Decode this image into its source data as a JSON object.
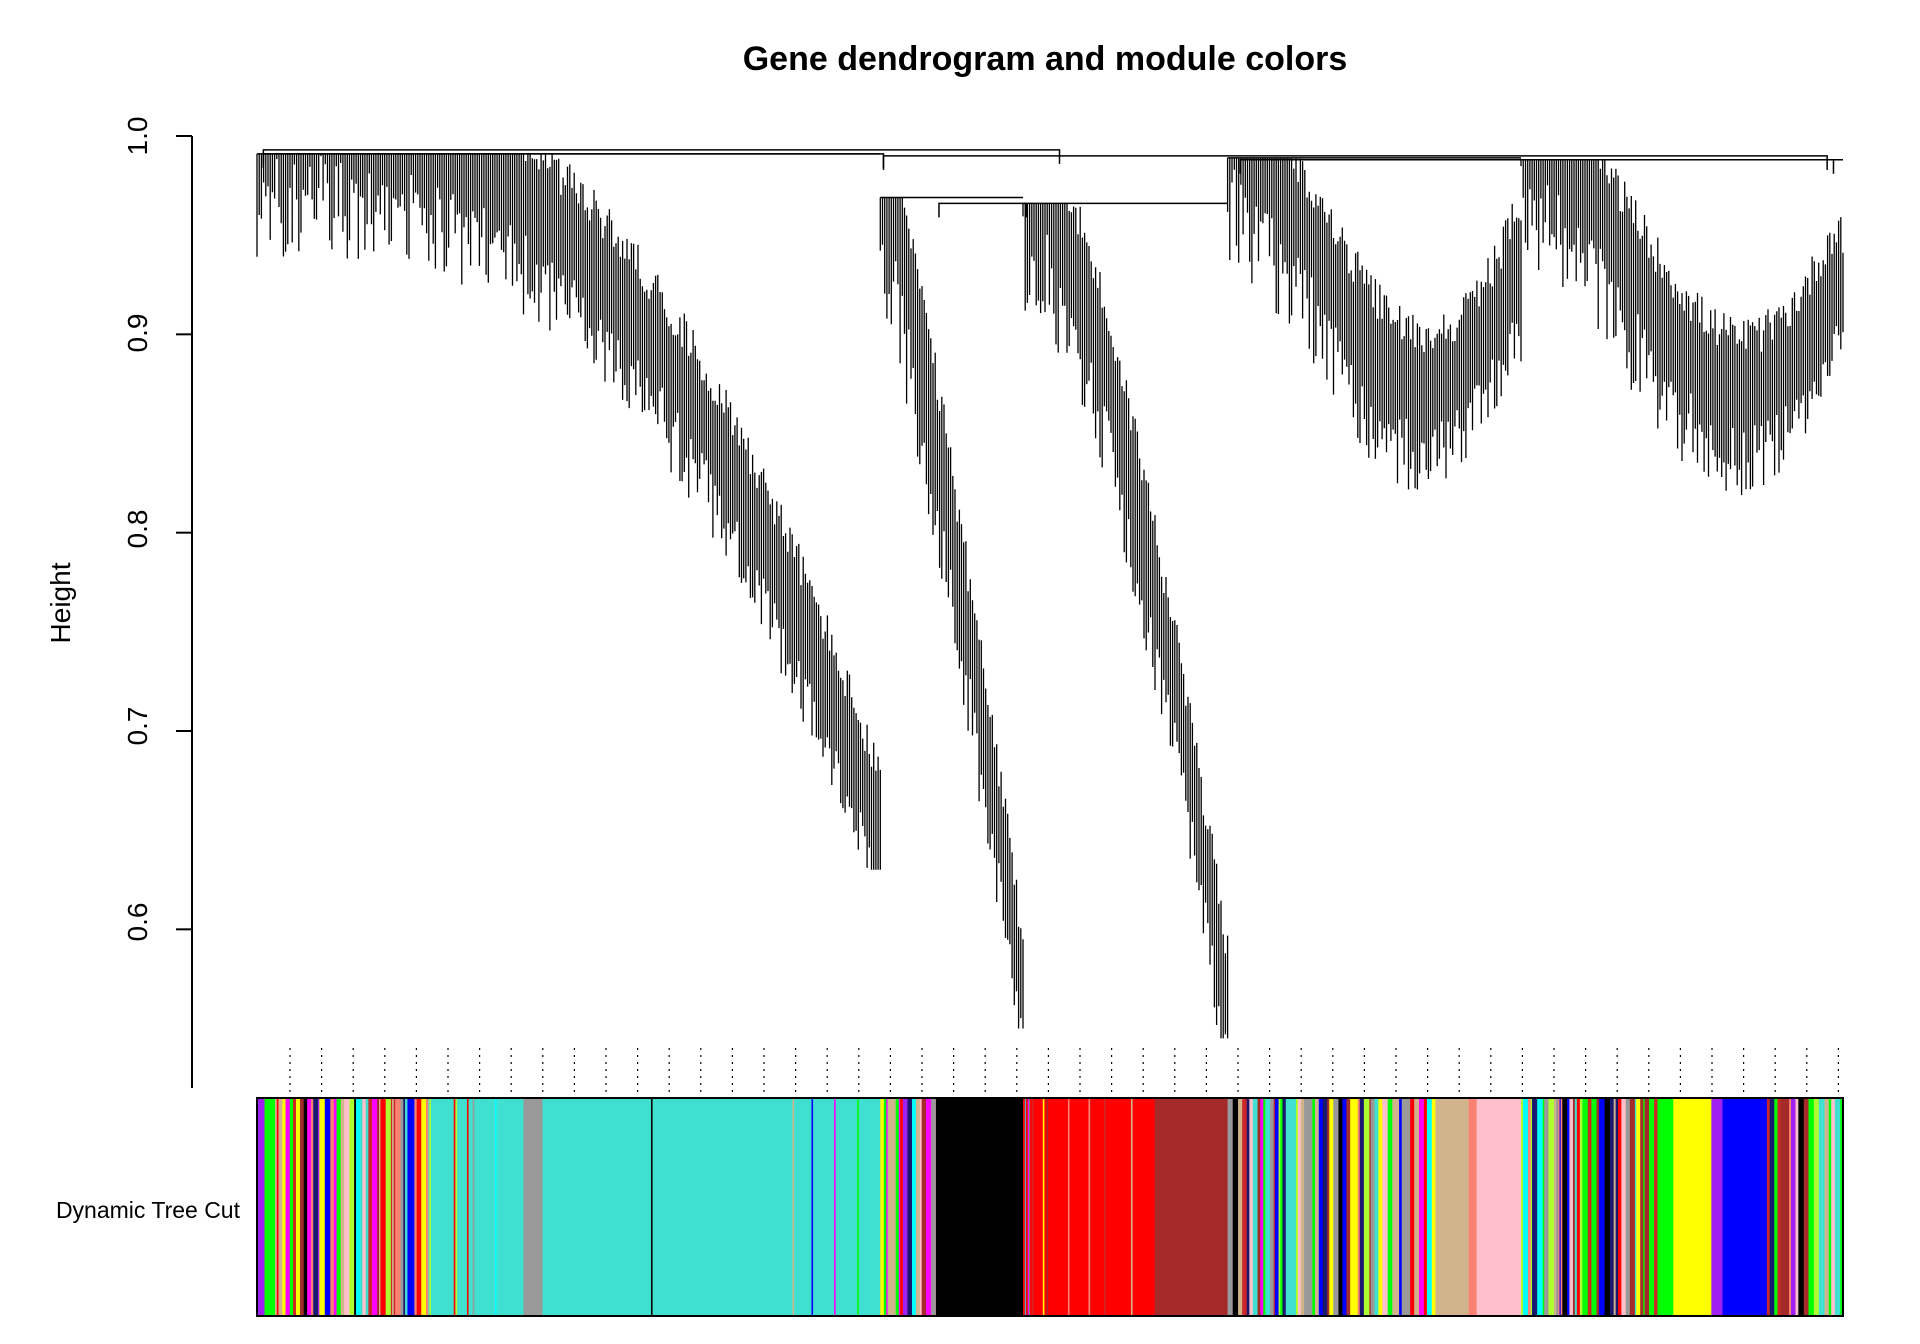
{
  "chart_data": {
    "type": "dendrogram",
    "title": "Gene dendrogram and module colors",
    "ylabel": "Height",
    "yticks": [
      "0.6",
      "0.7",
      "0.8",
      "0.9",
      "1.0"
    ],
    "ytick_values": [
      0.6,
      0.7,
      0.8,
      0.9,
      1.0
    ],
    "ylim": [
      0.52,
      1.0
    ],
    "color_row_label": "Dynamic Tree Cut",
    "top_merge_heights": [
      0.993,
      0.991,
      0.99,
      0.988,
      0.987
    ],
    "main_branches": [
      {
        "name": "turquoise branch",
        "top": 0.991,
        "min": 0.63
      },
      {
        "name": "black branch",
        "top": 0.969,
        "min": 0.55
      },
      {
        "name": "red/brown branch",
        "top": 0.966,
        "min": 0.545
      },
      {
        "name": "mixed branch",
        "top": 0.989,
        "min": 0.775
      },
      {
        "name": "blue/yellow branch",
        "top": 0.988,
        "min": 0.765
      }
    ],
    "modules": [
      {
        "color": "mixed",
        "start": 0.0,
        "end": 0.108
      },
      {
        "color": "turquoise",
        "start": 0.108,
        "end": 0.168
      },
      {
        "color": "grey",
        "start": 0.168,
        "end": 0.18
      },
      {
        "color": "turquoise",
        "start": 0.18,
        "end": 0.393
      },
      {
        "color": "mixed",
        "start": 0.393,
        "end": 0.428
      },
      {
        "color": "black",
        "start": 0.428,
        "end": 0.483
      },
      {
        "color": "red",
        "start": 0.483,
        "end": 0.566
      },
      {
        "color": "brown",
        "start": 0.566,
        "end": 0.612
      },
      {
        "color": "mixed",
        "start": 0.612,
        "end": 0.743
      },
      {
        "color": "tan",
        "start": 0.743,
        "end": 0.764
      },
      {
        "color": "salmon",
        "start": 0.764,
        "end": 0.769
      },
      {
        "color": "pink",
        "start": 0.769,
        "end": 0.797
      },
      {
        "color": "mixed",
        "start": 0.797,
        "end": 0.883
      },
      {
        "color": "green",
        "start": 0.883,
        "end": 0.893
      },
      {
        "color": "yellow",
        "start": 0.893,
        "end": 0.917
      },
      {
        "color": "purple",
        "start": 0.917,
        "end": 0.924
      },
      {
        "color": "blue",
        "start": 0.924,
        "end": 0.952
      },
      {
        "color": "mixed",
        "start": 0.952,
        "end": 1.0
      }
    ],
    "module_colors": {
      "turquoise": "#40E0D0",
      "grey": "#999999",
      "black": "#000000",
      "red": "#FF0000",
      "brown": "#A52A2A",
      "tan": "#D2B48C",
      "salmon": "#FA8072",
      "pink": "#FFC0CB",
      "green": "#00FF00",
      "yellow": "#FFFF00",
      "purple": "#A020F0",
      "blue": "#0000FF",
      "magenta": "#FF00FF",
      "greenyellow": "#ADFF2F",
      "cyan": "#00FFFF",
      "darkred": "#CD2626",
      "midnightblue": "#191970"
    }
  }
}
